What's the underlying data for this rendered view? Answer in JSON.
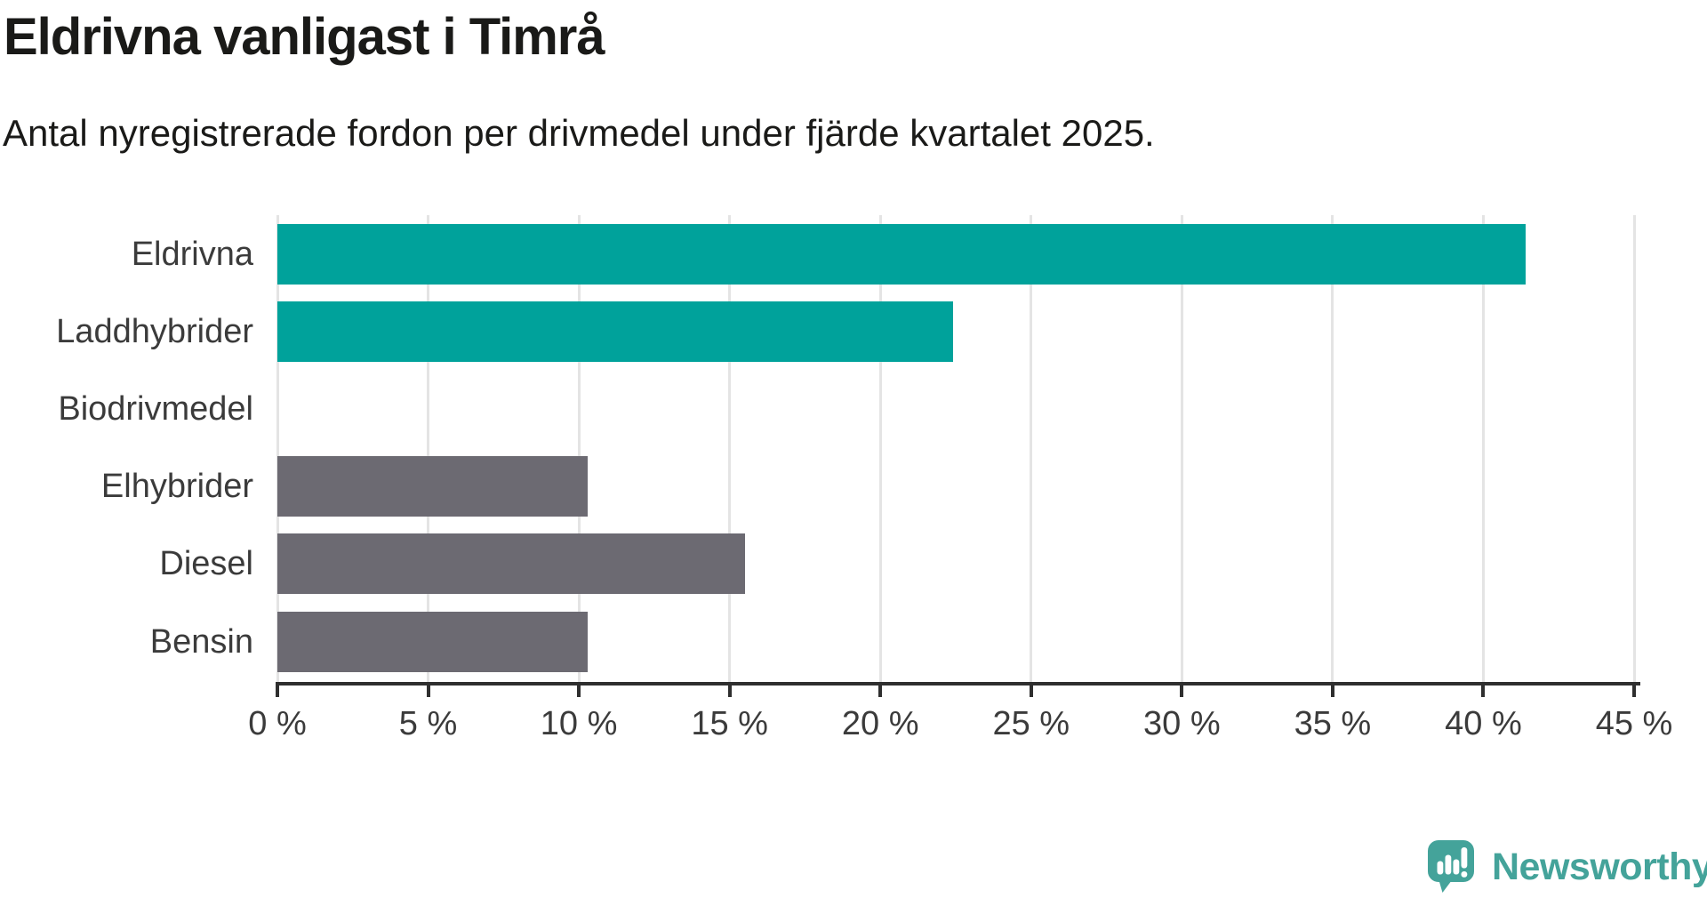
{
  "chart_data": {
    "type": "bar",
    "orientation": "horizontal",
    "title": "Eldrivna vanligast i Timrå",
    "subtitle": "Antal nyregistrerade fordon per drivmedel under fjärde kvartalet 2025.",
    "categories": [
      "Eldrivna",
      "Laddhybrider",
      "Biodrivmedel",
      "Elhybrider",
      "Diesel",
      "Bensin"
    ],
    "values": [
      41.4,
      22.4,
      0,
      10.3,
      15.5,
      10.3
    ],
    "unit": "%",
    "xlim": [
      0,
      45
    ],
    "x_tick_values": [
      0,
      5,
      10,
      15,
      20,
      25,
      30,
      35,
      40,
      45
    ],
    "x_tick_labels": [
      "0 %",
      "5 %",
      "10 %",
      "15 %",
      "20 %",
      "25 %",
      "30 %",
      "35 %",
      "40 %",
      "45 %"
    ],
    "bar_colors": [
      "#00a29b",
      "#00a29b",
      "#6c6a72",
      "#6c6a72",
      "#6c6a72",
      "#6c6a72"
    ],
    "grid": "vertical",
    "legend": "none"
  },
  "colors": {
    "highlight_teal": "#00a29b",
    "neutral_gray": "#6c6a72",
    "gridline": "#e4e4e4",
    "axis": "#2f2f2f",
    "text_dark": "#1a1a18",
    "text_label": "#3b3b3b",
    "logo_teal": "#44a39a"
  },
  "branding": {
    "logo_text": "Newsworthy",
    "logo_icon": "speech-bubble-bar-chart-exclamation"
  }
}
